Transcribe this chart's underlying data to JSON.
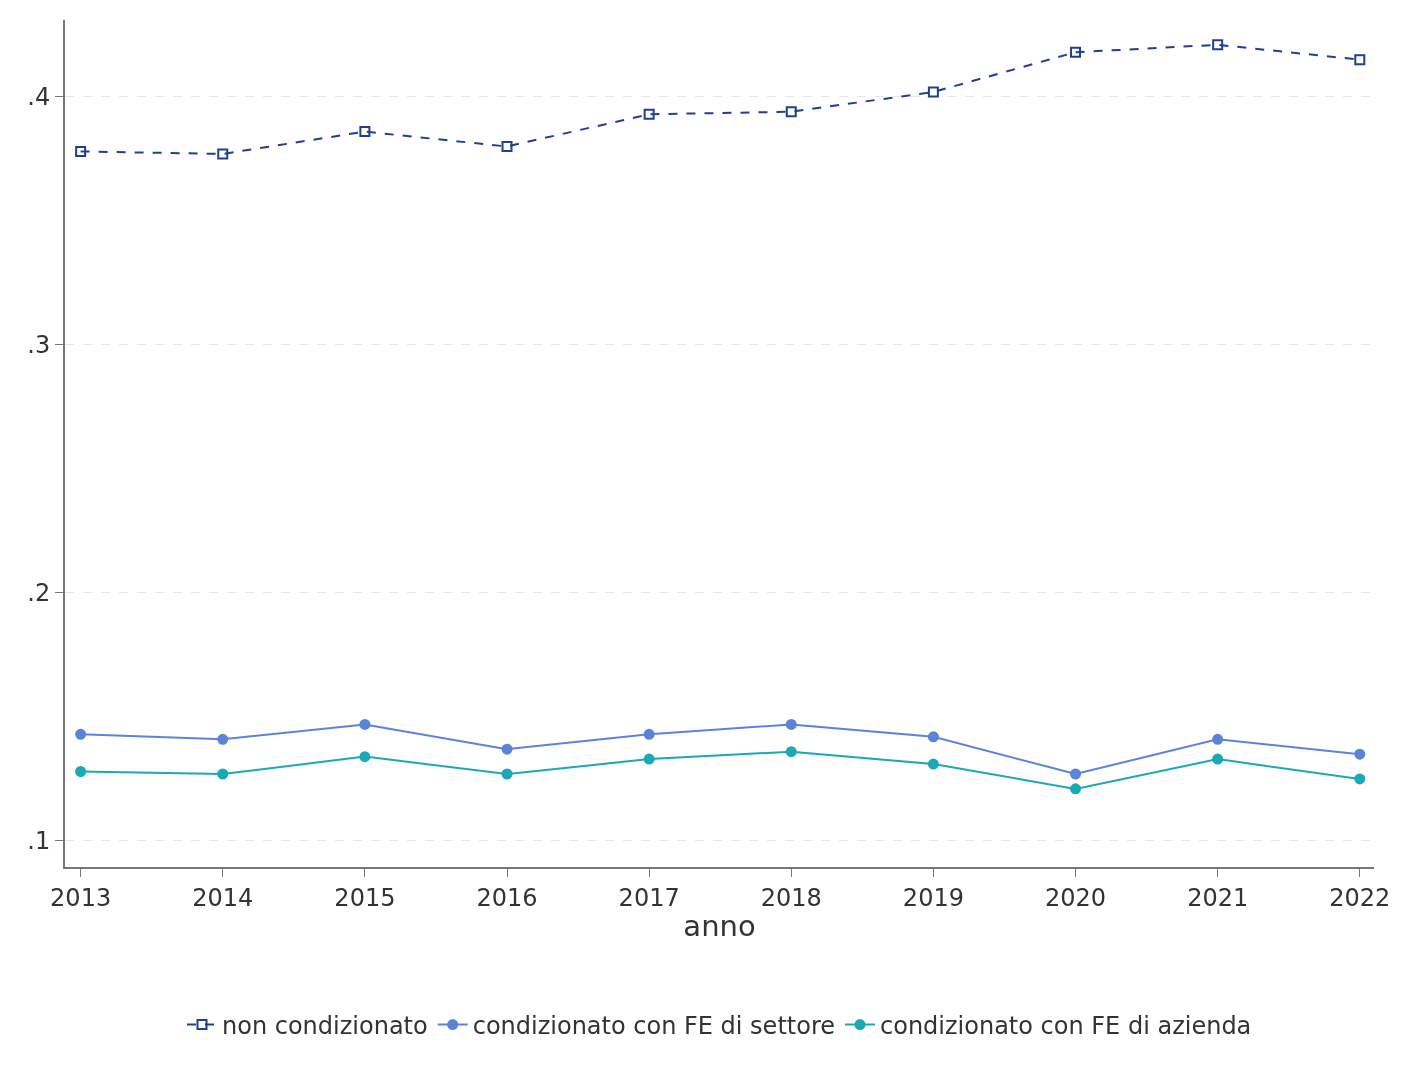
{
  "chart_data": {
    "type": "line",
    "xlabel": "anno",
    "x": [
      2013,
      2014,
      2015,
      2016,
      2017,
      2018,
      2019,
      2020,
      2021,
      2022
    ],
    "series": [
      {
        "name": "non condizionato",
        "color": "#1f3f8f",
        "marker": "square",
        "line_style": "dashed",
        "values": [
          0.378,
          0.377,
          0.386,
          0.38,
          0.393,
          0.394,
          0.402,
          0.418,
          0.421,
          0.415
        ]
      },
      {
        "name": "condizionato con FE di settore",
        "color": "#5b84d9",
        "marker": "circle",
        "line_style": "solid",
        "values": [
          0.143,
          0.141,
          0.147,
          0.137,
          0.143,
          0.147,
          0.142,
          0.127,
          0.141,
          0.135
        ]
      },
      {
        "name": "condizionato con FE di azienda",
        "color": "#1aa9b5",
        "marker": "circle",
        "line_style": "solid",
        "values": [
          0.128,
          0.127,
          0.134,
          0.127,
          0.133,
          0.136,
          0.131,
          0.121,
          0.133,
          0.125
        ]
      }
    ],
    "xlim": [
      2012.89,
      2022.1
    ],
    "xticks": [
      2013,
      2014,
      2015,
      2016,
      2017,
      2018,
      2019,
      2020,
      2021,
      2022
    ],
    "ylim": [
      0.0895,
      0.431
    ],
    "yticks": [
      {
        "value": 0.1,
        "label": ".1"
      },
      {
        "value": 0.2,
        "label": ".2"
      },
      {
        "value": 0.3,
        "label": ".3"
      },
      {
        "value": 0.4,
        "label": ".4"
      }
    ],
    "grid": "y",
    "legend": "bottom"
  }
}
